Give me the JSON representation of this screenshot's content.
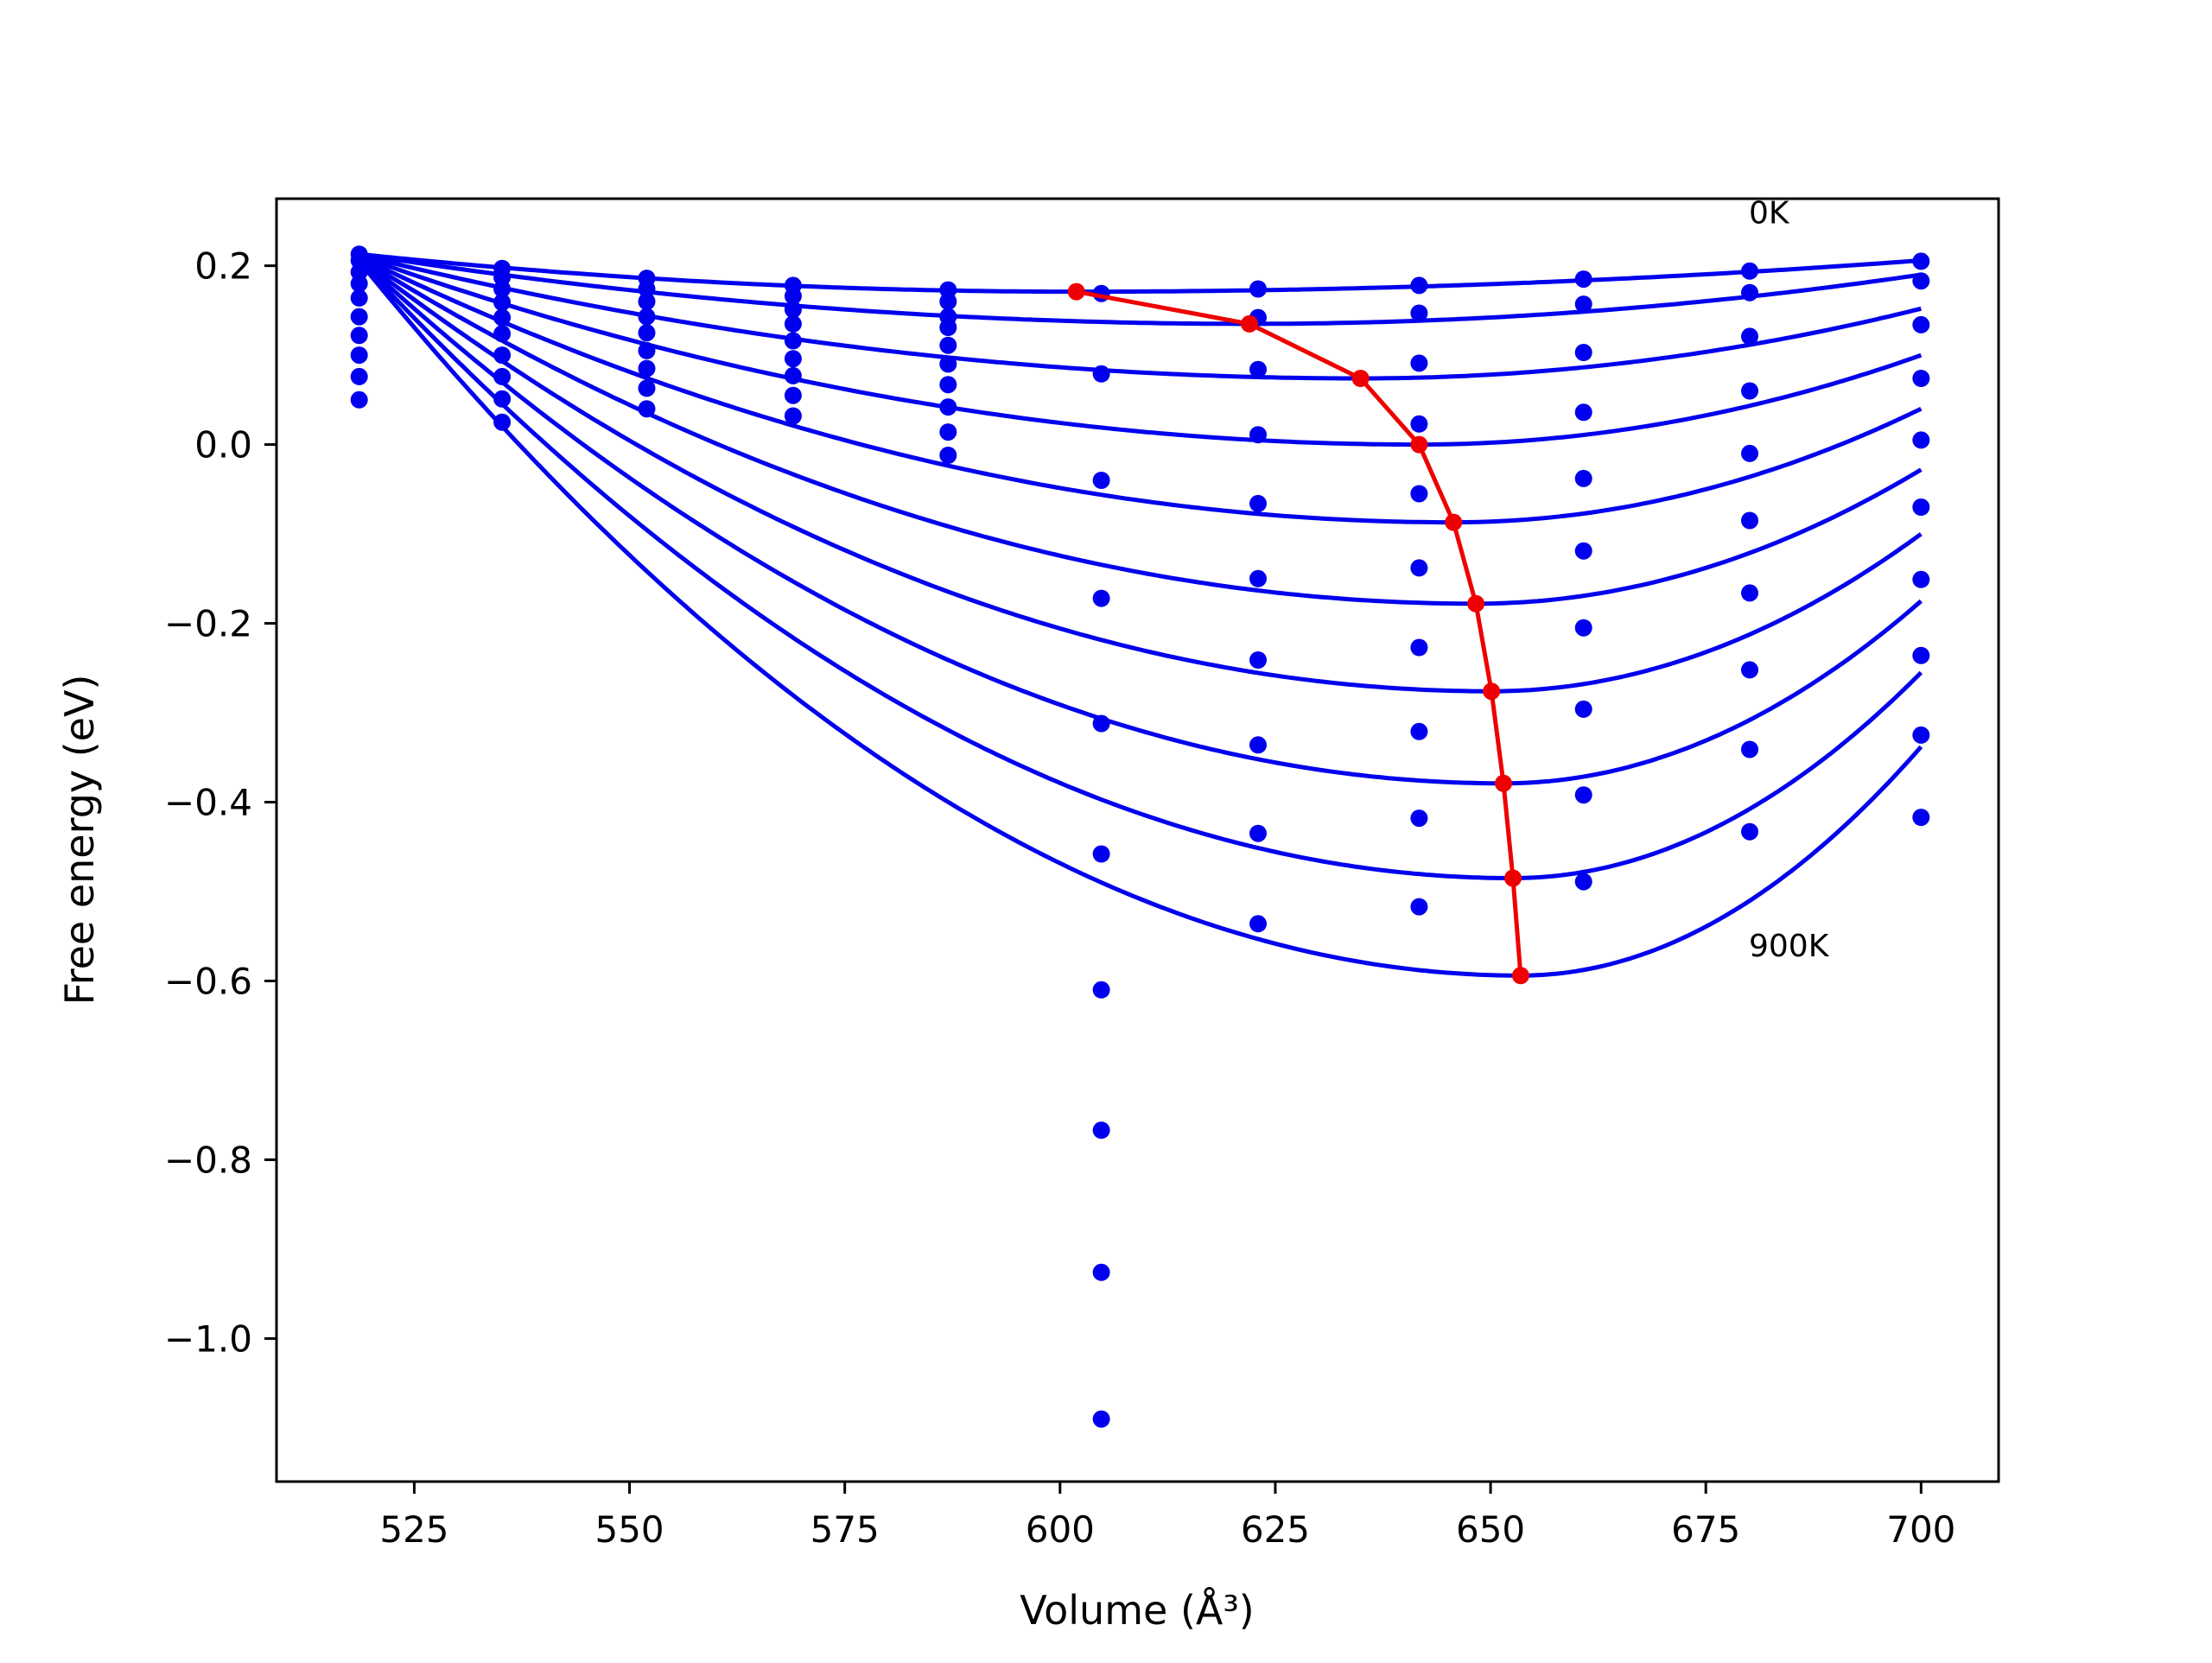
{
  "chart_data": {
    "type": "line",
    "title": "",
    "xlabel": "Volume (Å³)",
    "ylabel": "Free energy (eV)",
    "xlim": [
      509,
      709
    ],
    "ylim": [
      -1.16,
      0.275
    ],
    "xticks": [
      525,
      550,
      575,
      600,
      625,
      650,
      675,
      700
    ],
    "xtick_labels": [
      "525",
      "550",
      "575",
      "600",
      "625",
      "650",
      "675",
      "700"
    ],
    "yticks": [
      0.2,
      0.0,
      -0.2,
      -0.4,
      -0.6,
      -0.8,
      -1.0
    ],
    "ytick_labels": [
      "0.2",
      "0.0",
      "−0.2",
      "−0.4",
      "−0.6",
      "−0.8",
      "−1.0"
    ],
    "grid": false,
    "legend": false,
    "annotations": [
      {
        "text": "0K",
        "x": 680,
        "y": 0.26
      },
      {
        "text": "900K",
        "x": 680,
        "y": -0.56
      }
    ],
    "colors": {
      "isotherm": "#0000ee",
      "minimum_path": "#ee0000"
    },
    "fit_curves": [
      {
        "min_volume": 601.9,
        "min_energy": 0.171,
        "left_energy": 0.213,
        "right_energy": 0.206
      },
      {
        "min_volume": 622.0,
        "min_energy": 0.135,
        "left_energy": 0.213,
        "right_energy": 0.19
      },
      {
        "min_volume": 634.9,
        "min_energy": 0.074,
        "left_energy": 0.212,
        "right_energy": 0.152
      },
      {
        "min_volume": 641.7,
        "min_energy": 0.0,
        "left_energy": 0.211,
        "right_energy": 0.1
      },
      {
        "min_volume": 645.7,
        "min_energy": -0.087,
        "left_energy": 0.21,
        "right_energy": 0.04
      },
      {
        "min_volume": 648.3,
        "min_energy": -0.178,
        "left_energy": 0.209,
        "right_energy": -0.028
      },
      {
        "min_volume": 650.1,
        "min_energy": -0.276,
        "left_energy": 0.208,
        "right_energy": -0.1
      },
      {
        "min_volume": 651.5,
        "min_energy": -0.379,
        "left_energy": 0.207,
        "right_energy": -0.175
      },
      {
        "min_volume": 652.6,
        "min_energy": -0.485,
        "left_energy": 0.206,
        "right_energy": -0.255
      },
      {
        "min_volume": 653.5,
        "min_energy": -0.594,
        "left_energy": 0.205,
        "right_energy": -0.338
      }
    ],
    "minimum_path": {
      "x": [
        601.9,
        622.0,
        634.9,
        641.7,
        645.7,
        648.3,
        650.1,
        651.5,
        652.6,
        653.5
      ],
      "y": [
        0.171,
        0.135,
        0.074,
        0.0,
        -0.087,
        -0.178,
        -0.276,
        -0.379,
        -0.485,
        -0.594
      ]
    },
    "scatter_points": [
      {
        "x": 518.6,
        "y": [
          0.213,
          0.206,
          0.193,
          0.18,
          0.164,
          0.143,
          0.122,
          0.1,
          0.076,
          0.05
        ]
      },
      {
        "x": 535.2,
        "y": [
          0.197,
          0.187,
          0.174,
          0.159,
          0.142,
          0.124,
          0.1,
          0.076,
          0.051,
          0.025
        ]
      },
      {
        "x": 552.0,
        "y": [
          0.186,
          0.174,
          0.16,
          0.143,
          0.125,
          0.105,
          0.085,
          0.063,
          0.04
        ]
      },
      {
        "x": 569.0,
        "y": [
          0.178,
          0.166,
          0.151,
          0.135,
          0.116,
          0.096,
          0.077,
          0.055,
          0.032
        ]
      },
      {
        "x": 587.0,
        "y": [
          0.173,
          0.16,
          0.143,
          0.131,
          0.111,
          0.09,
          0.067,
          0.042,
          0.014,
          -0.012
        ]
      },
      {
        "x": 604.8,
        "y": [
          0.169,
          0.079,
          -0.04,
          -0.172,
          -0.312,
          -0.458,
          -0.61,
          -0.767,
          -0.926,
          -1.09
        ]
      },
      {
        "x": 623.0,
        "y": [
          0.174,
          0.142,
          0.084,
          0.011,
          -0.066,
          -0.15,
          -0.241,
          -0.336,
          -0.435,
          -0.536
        ]
      },
      {
        "x": 641.7,
        "y": [
          0.178,
          0.147,
          0.091,
          0.023,
          -0.055,
          -0.138,
          -0.227,
          -0.321,
          -0.418,
          -0.517
        ]
      },
      {
        "x": 660.8,
        "y": [
          0.185,
          0.157,
          0.103,
          0.036,
          -0.038,
          -0.119,
          -0.205,
          -0.296,
          -0.392,
          -0.489
        ]
      },
      {
        "x": 680.1,
        "y": [
          0.194,
          0.17,
          0.121,
          0.06,
          -0.01,
          -0.085,
          -0.166,
          -0.252,
          -0.341,
          -0.433
        ]
      },
      {
        "x": 700.0,
        "y": [
          0.205,
          0.183,
          0.134,
          0.074,
          0.005,
          -0.07,
          -0.151,
          -0.236,
          -0.325,
          -0.417
        ]
      }
    ]
  }
}
